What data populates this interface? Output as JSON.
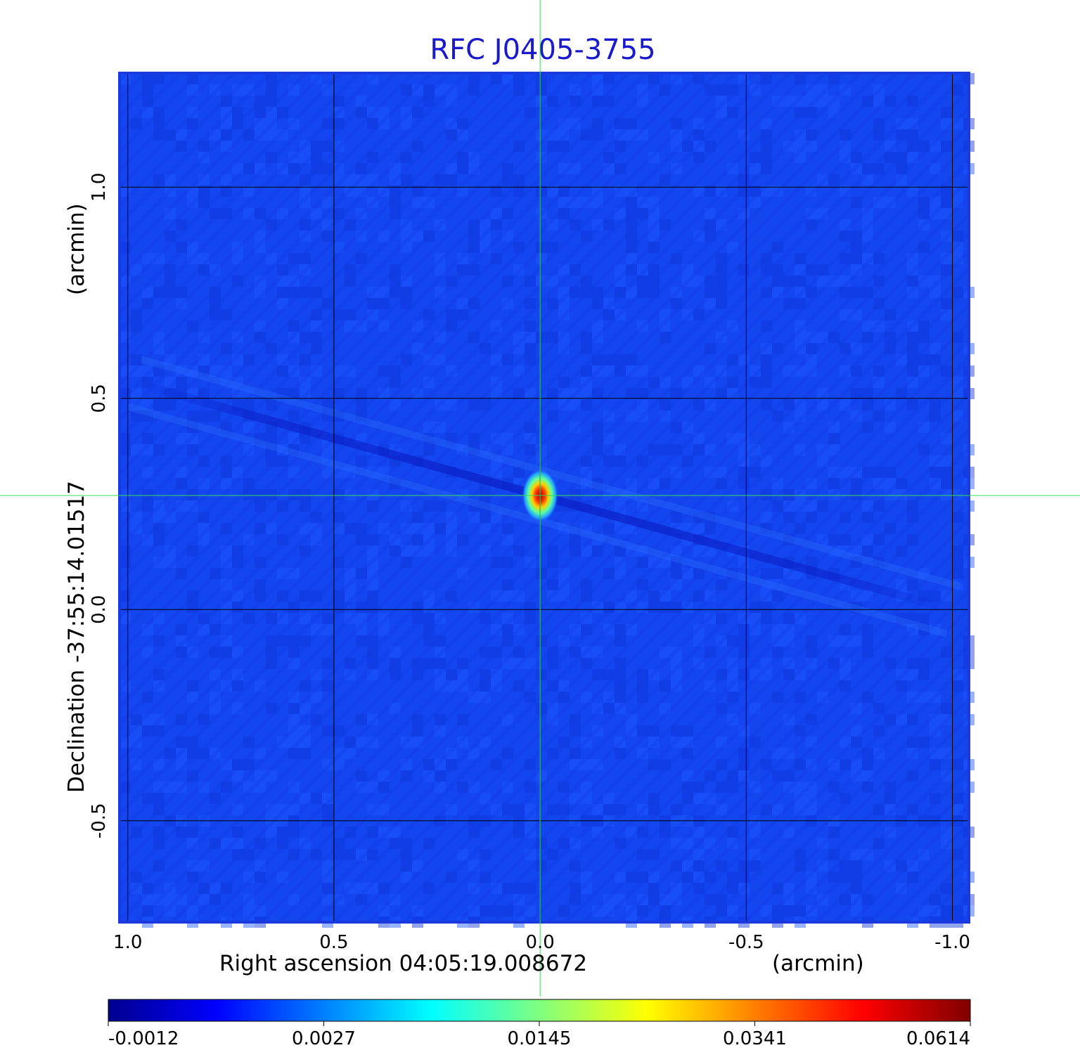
{
  "chart_data": {
    "type": "heatmap",
    "title": "RFC J0405-3755",
    "xlabel": "Right ascension  04:05:19.008672",
    "xunit": "(arcmin)",
    "ylabel": "Declination  -37:55:14.01517",
    "yunit": "(arcmin)",
    "xlim": [
      1.02,
      -1.04
    ],
    "ylim": [
      -0.74,
      1.27
    ],
    "x_ticks": [
      1.0,
      0.5,
      0.0,
      -0.5,
      -1.0
    ],
    "x_tick_labels": [
      "1.0",
      "0.5",
      "0.0",
      "-0.5",
      "-1.0"
    ],
    "y_ticks": [
      -0.5,
      0.0,
      0.5,
      1.0
    ],
    "y_tick_labels": [
      "-0.5",
      "0.0",
      "0.5",
      "1.0"
    ],
    "grid": true,
    "peak": {
      "x": 0.0,
      "y": 0.27,
      "value": 0.0614
    },
    "crosshair": {
      "x": 0.0,
      "y": 0.27
    },
    "colorbar": {
      "position": "bottom",
      "colormap": "jet",
      "tick_labels": [
        "-0.0012",
        "0.0027",
        "0.0145",
        "0.0341",
        "0.0614"
      ]
    },
    "colors": {
      "background_field": "#1446f0",
      "frame": "#1a3ae0",
      "crosshair": "#33dd55",
      "grid": "#000000"
    }
  }
}
